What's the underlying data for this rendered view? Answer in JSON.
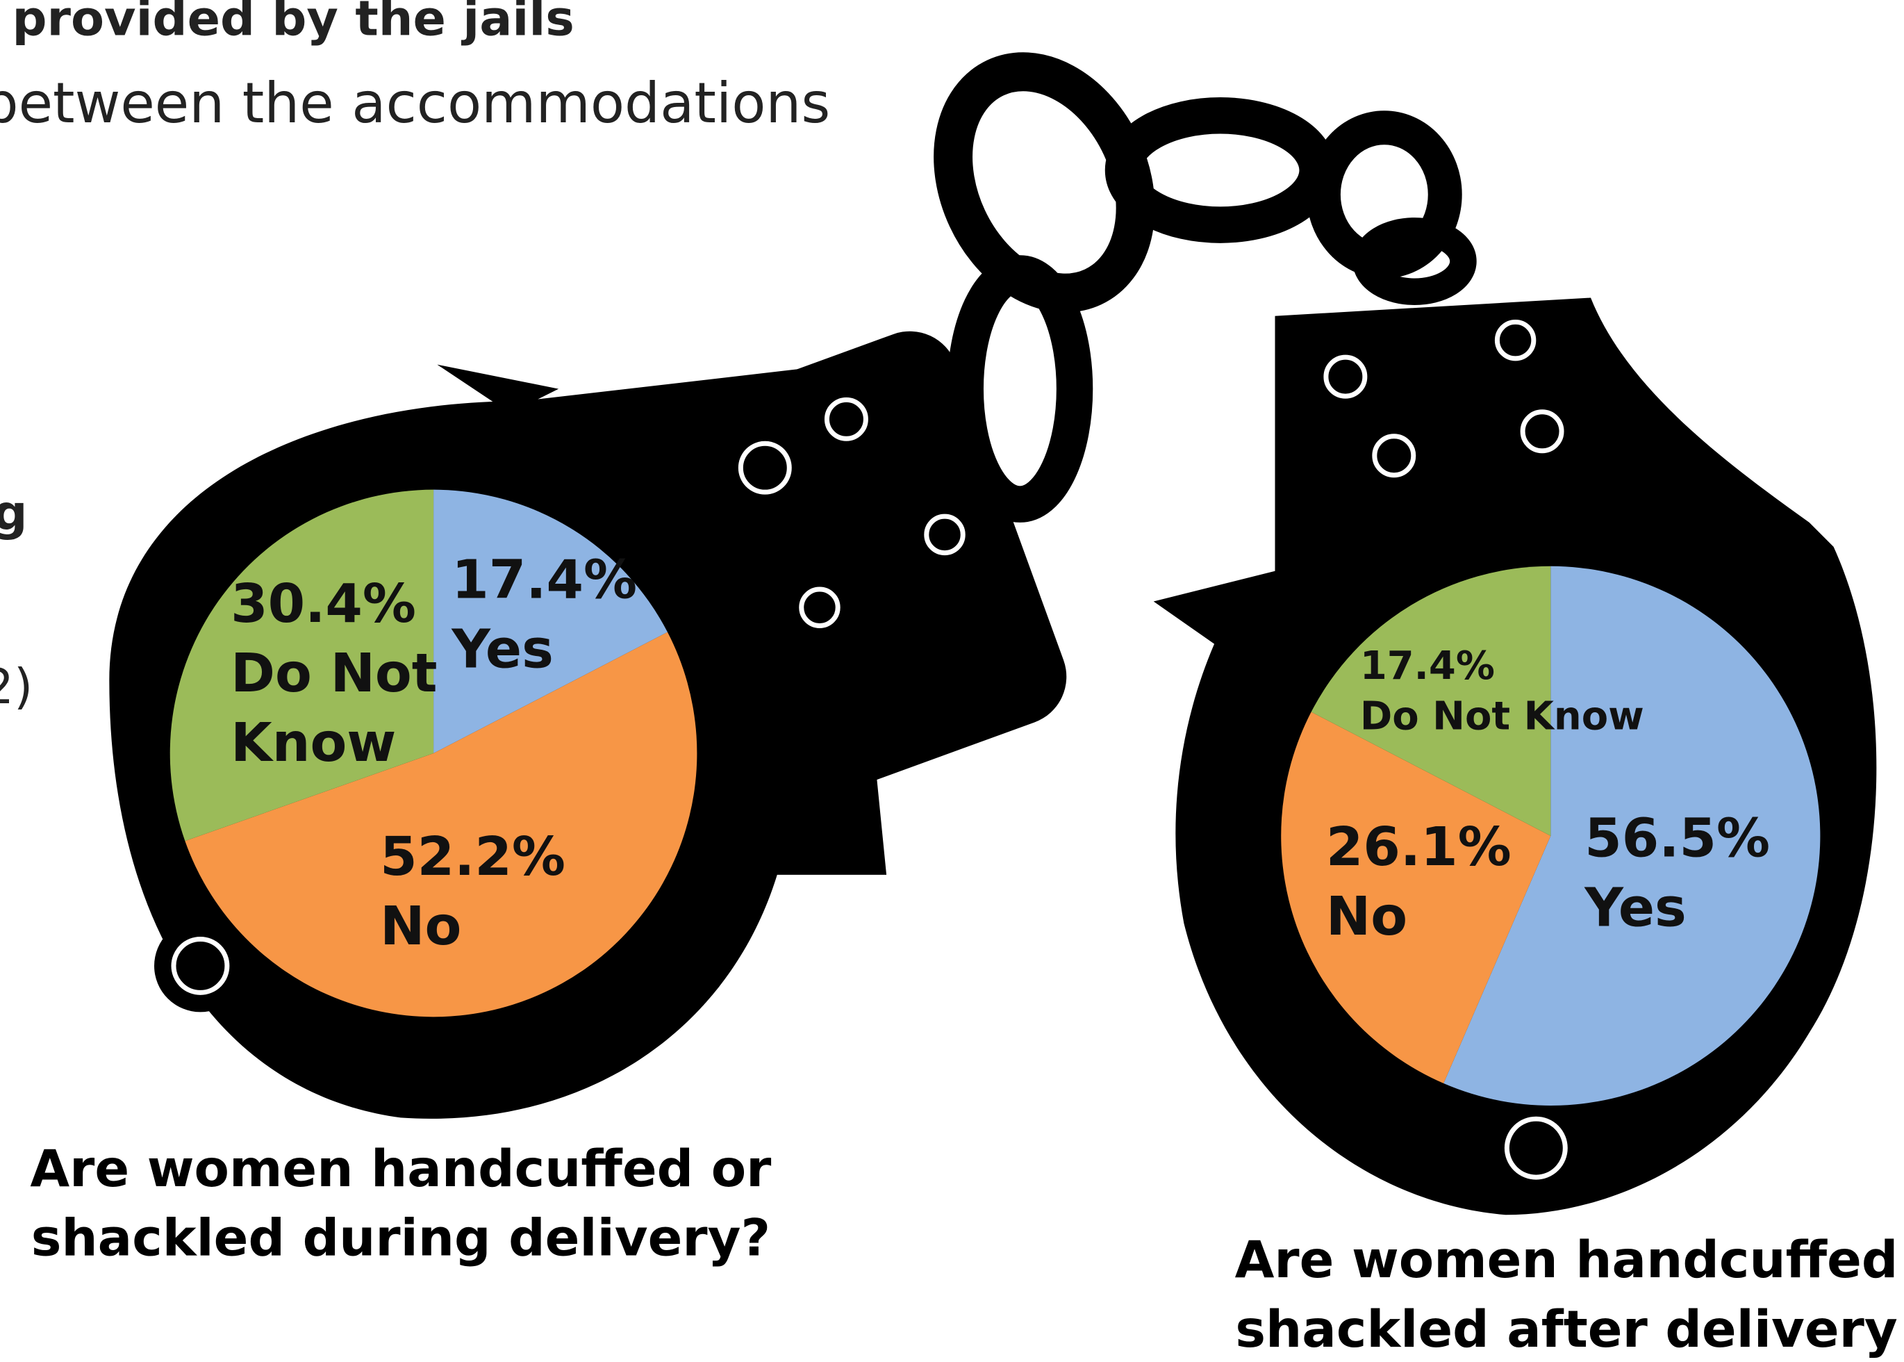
{
  "slide": {
    "lines": [
      "provided by the jails",
      "between the accommodations",
      "g",
      "2)"
    ]
  },
  "chart_data": [
    {
      "type": "pie",
      "title_lines": [
        "Are women handcuffed or",
        "shackled during delivery?"
      ],
      "categories": [
        "Yes",
        "No",
        "Do Not Know"
      ],
      "values": [
        17.4,
        52.2,
        30.4
      ],
      "value_labels": [
        "17.4%",
        "52.2%",
        "30.4%"
      ],
      "colors": [
        "#8eb4e3",
        "#f79646",
        "#9bbb59"
      ]
    },
    {
      "type": "pie",
      "title_lines": [
        "Are women handcuffed",
        "shackled after delivery"
      ],
      "categories": [
        "Yes",
        "No",
        "Do Not Know"
      ],
      "values": [
        56.5,
        26.1,
        17.4
      ],
      "value_labels": [
        "56.5%",
        "26.1%",
        "17.4%"
      ],
      "colors": [
        "#8eb4e3",
        "#f79646",
        "#9bbb59"
      ]
    }
  ]
}
